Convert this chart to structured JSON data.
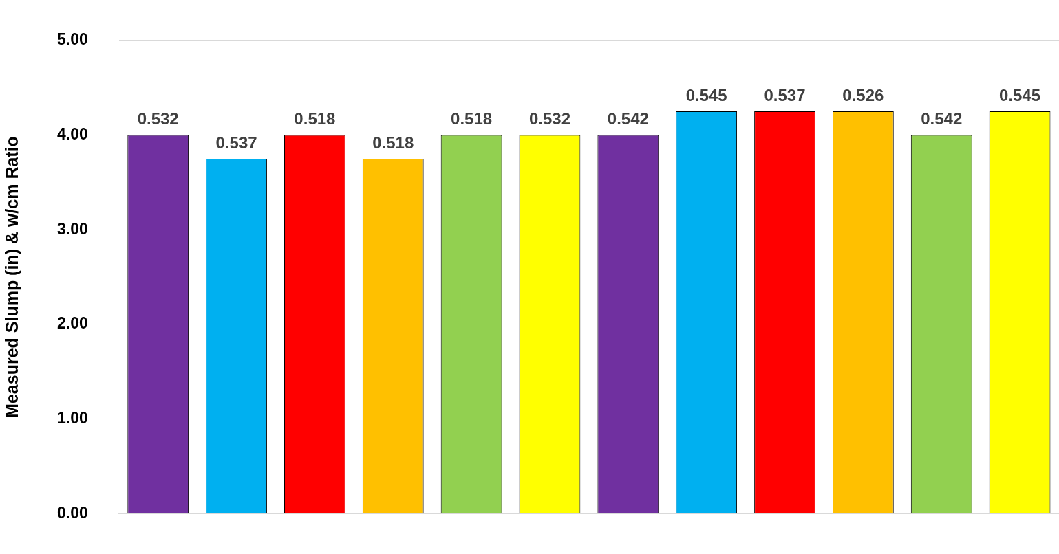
{
  "chart_data": {
    "type": "bar",
    "ylabel": "Measured Slump (in) & w/cm Ratio",
    "categories": [
      null,
      null,
      null,
      null,
      null,
      null,
      null,
      null,
      null,
      null,
      null,
      null
    ],
    "values": [
      4.0,
      3.75,
      4.0,
      3.75,
      4.0,
      4.0,
      4.0,
      4.25,
      4.25,
      4.25,
      4.0,
      4.25
    ],
    "colors": [
      "#7030a0",
      "#00b0f0",
      "#ff0000",
      "#ffc000",
      "#92d050",
      "#ffff00",
      "#7030a0",
      "#00b0f0",
      "#ff0000",
      "#ffc000",
      "#92d050",
      "#ffff00"
    ],
    "annotations": [
      "0.532",
      "0.537",
      "0.518",
      "0.518",
      "0.518",
      "0.532",
      "0.542",
      "0.545",
      "0.537",
      "0.526",
      "0.542",
      "0.545"
    ],
    "ylim": [
      0,
      5
    ],
    "yticks": [
      {
        "value": 0,
        "label": "0.00"
      },
      {
        "value": 1,
        "label": "1.00"
      },
      {
        "value": 2,
        "label": "2.00"
      },
      {
        "value": 3,
        "label": "3.00"
      },
      {
        "value": 4,
        "label": "4.00"
      },
      {
        "value": 5,
        "label": "5.00"
      }
    ],
    "grid": "y",
    "legend": false
  }
}
